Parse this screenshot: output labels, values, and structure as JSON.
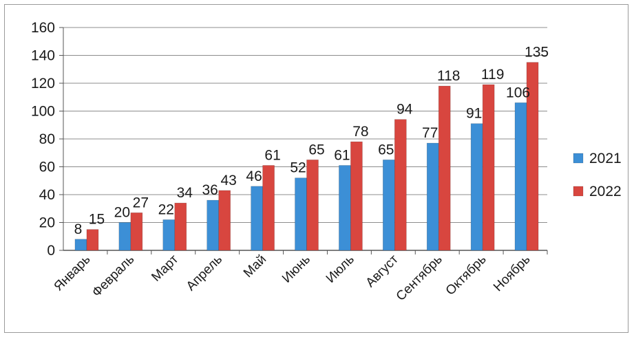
{
  "chart_data": {
    "type": "bar",
    "title": "",
    "xlabel": "",
    "ylabel": "",
    "ylim": [
      0,
      160
    ],
    "yticks": [
      0,
      20,
      40,
      60,
      80,
      100,
      120,
      140,
      160
    ],
    "grid": true,
    "legend_position": "right",
    "categories": [
      "Январь",
      "Февраль",
      "Март",
      "Апрель",
      "Май",
      "Июнь",
      "Июль",
      "Август",
      "Сентябрь",
      "Октябрь",
      "Ноябрь"
    ],
    "series": [
      {
        "name": "2021",
        "color": "#3c8fd6",
        "values": [
          8,
          20,
          22,
          36,
          46,
          52,
          61,
          65,
          77,
          91,
          106
        ]
      },
      {
        "name": "2022",
        "color": "#d8463f",
        "values": [
          15,
          27,
          34,
          43,
          61,
          65,
          78,
          94,
          118,
          119,
          135
        ]
      }
    ]
  }
}
